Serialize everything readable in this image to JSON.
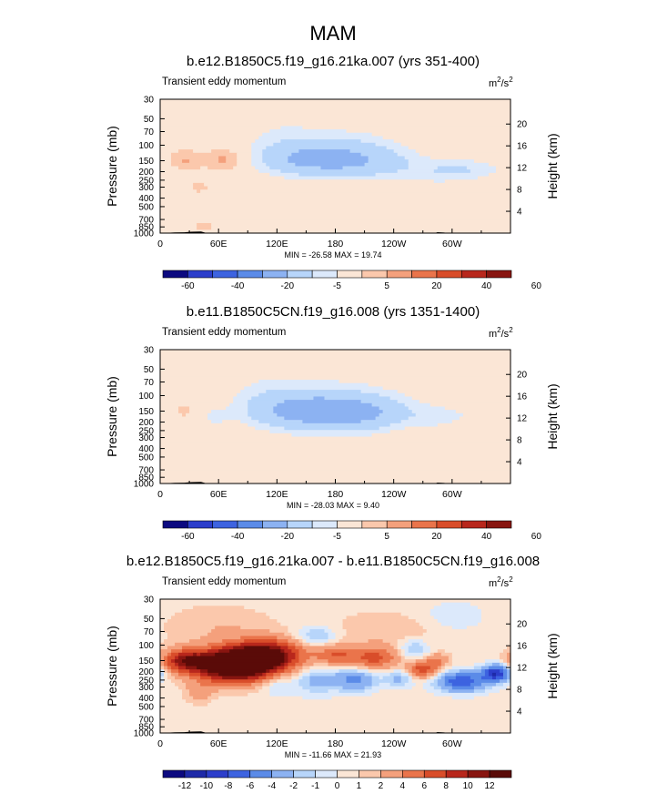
{
  "figure": {
    "title": "MAM"
  },
  "chart_data": [
    {
      "type": "heatmap",
      "title": "b.e12.B1850C5.f19_g16.21ka.007 (yrs 351-400)",
      "subtitle": "Transient eddy momentum",
      "units": "m2/s2",
      "units_base": "m",
      "units_exp1": "2",
      "units_mid": "/s",
      "units_exp2": "2",
      "xlabel": "",
      "ylabel": "Pressure (mb)",
      "ylabel_right": "Height (km)",
      "x_ticks": [
        "0",
        "60E",
        "120E",
        "180",
        "120W",
        "60W"
      ],
      "y_ticks": [
        "30",
        "50",
        "70",
        "100",
        "150",
        "200",
        "250",
        "300",
        "400",
        "500",
        "700",
        "850",
        "1000"
      ],
      "y_ticks_right": [
        "20",
        "16",
        "12",
        "8",
        "4"
      ],
      "xlim": [
        0,
        360
      ],
      "ylim": [
        1000,
        30
      ],
      "stats": "MIN = -26.58  MAX =  19.74",
      "colorbar_levels": [
        "-60",
        "-40",
        "-20",
        "-5",
        "5",
        "20",
        "40",
        "60"
      ],
      "blobs": [
        {
          "lon": 175,
          "p": 140,
          "w": 55,
          "h": 0.38,
          "amp": -22
        },
        {
          "lon": 145,
          "p": 150,
          "w": 35,
          "h": 0.28,
          "amp": -6
        },
        {
          "lon": 220,
          "p": 175,
          "w": 30,
          "h": 0.26,
          "amp": -5
        },
        {
          "lon": 310,
          "p": 190,
          "w": 35,
          "h": 0.22,
          "amp": -12
        },
        {
          "lon": 280,
          "p": 260,
          "w": 25,
          "h": 0.2,
          "amp": -3
        },
        {
          "lon": 175,
          "p": 60,
          "w": 70,
          "h": 0.5,
          "amp": -4
        },
        {
          "lon": 120,
          "p": 70,
          "w": 25,
          "h": 0.3,
          "amp": -3
        },
        {
          "lon": 345,
          "p": 60,
          "w": 20,
          "h": 0.4,
          "amp": -3
        },
        {
          "lon": 25,
          "p": 150,
          "w": 12,
          "h": 0.2,
          "amp": 9
        },
        {
          "lon": 68,
          "p": 145,
          "w": 15,
          "h": 0.22,
          "amp": 12
        },
        {
          "lon": 40,
          "p": 300,
          "w": 8,
          "h": 0.12,
          "amp": 4
        },
        {
          "lon": 45,
          "p": 850,
          "w": 8,
          "h": 0.1,
          "amp": 4
        }
      ]
    },
    {
      "type": "heatmap",
      "title": "b.e11.B1850C5CN.f19_g16.008 (yrs 1351-1400)",
      "subtitle": "Transient eddy momentum",
      "units": "m2/s2",
      "units_base": "m",
      "units_exp1": "2",
      "units_mid": "/s",
      "units_exp2": "2",
      "xlabel": "",
      "ylabel": "Pressure (mb)",
      "ylabel_right": "Height (km)",
      "x_ticks": [
        "0",
        "60E",
        "120E",
        "180",
        "120W",
        "60W"
      ],
      "y_ticks": [
        "30",
        "50",
        "70",
        "100",
        "150",
        "200",
        "250",
        "300",
        "400",
        "500",
        "700",
        "850",
        "1000"
      ],
      "y_ticks_right": [
        "20",
        "16",
        "12",
        "8",
        "4"
      ],
      "xlim": [
        0,
        360
      ],
      "ylim": [
        1000,
        30
      ],
      "stats": "MIN = -28.03  MAX =  9.40",
      "colorbar_levels": [
        "-60",
        "-40",
        "-20",
        "-5",
        "5",
        "20",
        "40",
        "60"
      ],
      "blobs": [
        {
          "lon": 175,
          "p": 155,
          "w": 55,
          "h": 0.4,
          "amp": -24
        },
        {
          "lon": 130,
          "p": 140,
          "w": 40,
          "h": 0.35,
          "amp": -8
        },
        {
          "lon": 220,
          "p": 160,
          "w": 30,
          "h": 0.3,
          "amp": -6
        },
        {
          "lon": 285,
          "p": 175,
          "w": 18,
          "h": 0.22,
          "amp": -7
        },
        {
          "lon": 325,
          "p": 170,
          "w": 18,
          "h": 0.2,
          "amp": -5
        },
        {
          "lon": 55,
          "p": 180,
          "w": 10,
          "h": 0.18,
          "amp": -6
        },
        {
          "lon": 175,
          "p": 65,
          "w": 75,
          "h": 0.55,
          "amp": -4
        },
        {
          "lon": 100,
          "p": 75,
          "w": 25,
          "h": 0.3,
          "amp": -3
        },
        {
          "lon": 230,
          "p": 400,
          "w": 20,
          "h": 0.2,
          "amp": -2.5
        },
        {
          "lon": 25,
          "p": 150,
          "w": 6,
          "h": 0.15,
          "amp": 5
        }
      ]
    },
    {
      "type": "heatmap",
      "title": "b.e12.B1850C5.f19_g16.21ka.007 - b.e11.B1850C5CN.f19_g16.008",
      "subtitle": "Transient eddy momentum",
      "units": "m2/s2",
      "units_base": "m",
      "units_exp1": "2",
      "units_mid": "/s",
      "units_exp2": "2",
      "xlabel": "",
      "ylabel": "Pressure (mb)",
      "ylabel_right": "Height (km)",
      "x_ticks": [
        "0",
        "60E",
        "120E",
        "180",
        "120W",
        "60W"
      ],
      "y_ticks": [
        "30",
        "50",
        "70",
        "100",
        "150",
        "200",
        "250",
        "300",
        "400",
        "500",
        "700",
        "850",
        "1000"
      ],
      "y_ticks_right": [
        "20",
        "16",
        "12",
        "8",
        "4"
      ],
      "xlim": [
        0,
        360
      ],
      "ylim": [
        1000,
        30
      ],
      "stats": "MIN = -11.66  MAX =  21.93",
      "colorbar_levels": [
        "-12",
        "-10",
        "-8",
        "-6",
        "-4",
        "-2",
        "-1",
        "0",
        "1",
        "2",
        "4",
        "6",
        "8",
        "10",
        "12"
      ],
      "blobs": [
        {
          "lon": 75,
          "p": 170,
          "w": 28,
          "h": 0.3,
          "amp": 18
        },
        {
          "lon": 110,
          "p": 130,
          "w": 25,
          "h": 0.28,
          "amp": 12
        },
        {
          "lon": 25,
          "p": 150,
          "w": 15,
          "h": 0.2,
          "amp": 9
        },
        {
          "lon": 180,
          "p": 130,
          "w": 15,
          "h": 0.18,
          "amp": 5
        },
        {
          "lon": 220,
          "p": 140,
          "w": 18,
          "h": 0.2,
          "amp": 6
        },
        {
          "lon": 270,
          "p": 190,
          "w": 10,
          "h": 0.15,
          "amp": 7
        },
        {
          "lon": 285,
          "p": 150,
          "w": 8,
          "h": 0.12,
          "amp": 4
        },
        {
          "lon": 160,
          "p": 250,
          "w": 15,
          "h": 0.25,
          "amp": -3
        },
        {
          "lon": 200,
          "p": 250,
          "w": 15,
          "h": 0.2,
          "amp": -5
        },
        {
          "lon": 245,
          "p": 240,
          "w": 10,
          "h": 0.15,
          "amp": -3
        },
        {
          "lon": 310,
          "p": 260,
          "w": 18,
          "h": 0.18,
          "amp": -8
        },
        {
          "lon": 345,
          "p": 210,
          "w": 10,
          "h": 0.15,
          "amp": -10
        },
        {
          "lon": 120,
          "p": 280,
          "w": 12,
          "h": 0.2,
          "amp": -2
        },
        {
          "lon": 160,
          "p": 80,
          "w": 15,
          "h": 0.2,
          "amp": -3
        },
        {
          "lon": 260,
          "p": 110,
          "w": 12,
          "h": 0.2,
          "amp": -3
        },
        {
          "lon": 40,
          "p": 350,
          "w": 10,
          "h": 0.2,
          "amp": 2.5
        },
        {
          "lon": 240,
          "p": 70,
          "w": 50,
          "h": 0.4,
          "amp": 1.5
        },
        {
          "lon": 60,
          "p": 60,
          "w": 40,
          "h": 0.4,
          "amp": 1.5
        },
        {
          "lon": 300,
          "p": 50,
          "w": 25,
          "h": 0.3,
          "amp": -1.5
        }
      ]
    }
  ],
  "palette": {
    "main": [
      "#0c0a80",
      "#2c3ecb",
      "#3d63e0",
      "#5b8be8",
      "#8cb2f2",
      "#b7d5fa",
      "#dce9fb",
      "#fbe6d6",
      "#fbc8ac",
      "#f4a07c",
      "#ea744b",
      "#d94d2a",
      "#b8271c",
      "#881510"
    ],
    "main_breaks": [
      -60,
      -50,
      -40,
      -30,
      -20,
      -10,
      -5,
      5,
      10,
      20,
      30,
      40,
      50,
      60
    ],
    "diff": [
      "#0c0a80",
      "#1e2aa8",
      "#2c3ecb",
      "#3d63e0",
      "#5b8be8",
      "#8cb2f2",
      "#b7d5fa",
      "#dce9fb",
      "#fbe6d6",
      "#fbc8ac",
      "#f4a07c",
      "#ea744b",
      "#d94d2a",
      "#b8271c",
      "#881510",
      "#5a0b08"
    ],
    "diff_breaks": [
      -12,
      -10,
      -8,
      -6,
      -4,
      -2,
      -1,
      0,
      1,
      2,
      4,
      6,
      8,
      10,
      12
    ]
  }
}
